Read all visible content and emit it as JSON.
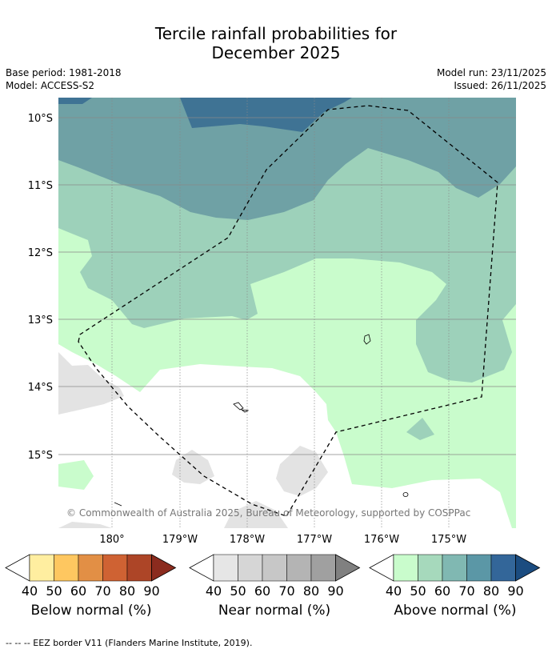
{
  "title_line1": "Tercile rainfall probabilities for",
  "title_line2": "December 2025",
  "meta": {
    "base_period": "Base period: 1981-2018",
    "model": "Model: ACCESS-S2",
    "model_run": "Model run: 23/11/2025",
    "issued": "Issued: 26/11/2025"
  },
  "map": {
    "lat_labels": [
      "10°S",
      "11°S",
      "12°S",
      "13°S",
      "14°S",
      "15°S"
    ],
    "lon_labels": [
      "180°",
      "179°W",
      "178°W",
      "177°W",
      "176°W",
      "175°W"
    ],
    "copyright": "© Commonwealth of Australia 2025, Bureau of Meteorology, supported by COSPPac"
  },
  "colorbars": [
    {
      "name": "below",
      "label": "Below normal (%)",
      "ticks": [
        "40",
        "50",
        "60",
        "70",
        "80",
        "90"
      ],
      "colors": [
        "#ffeea0",
        "#fec760",
        "#e28f45",
        "#cf6233",
        "#ad4527",
        "#8b2b1e"
      ]
    },
    {
      "name": "near",
      "label": "Near normal (%)",
      "ticks": [
        "40",
        "50",
        "60",
        "70",
        "80",
        "90"
      ],
      "colors": [
        "#e6e6e6",
        "#d6d6d6",
        "#c7c7c7",
        "#b4b4b4",
        "#a0a0a0",
        "#808080"
      ]
    },
    {
      "name": "above",
      "label": "Above normal (%)",
      "ticks": [
        "40",
        "50",
        "60",
        "70",
        "80",
        "90"
      ],
      "colors": [
        "#c9fccc",
        "#a6d9bc",
        "#80b8b2",
        "#5b97a6",
        "#336699",
        "#1b4c80"
      ]
    }
  ],
  "footnote": "--  --  -- EEZ border V11 (Flanders Marine Institute, 2019).",
  "colors": {
    "a70": "#5d8f9f",
    "a60": "#6fa1a5",
    "a50": "#9dd1ba",
    "a40": "#c9fccc",
    "a80": "#3f7394",
    "n40": "#e3e3e3"
  }
}
